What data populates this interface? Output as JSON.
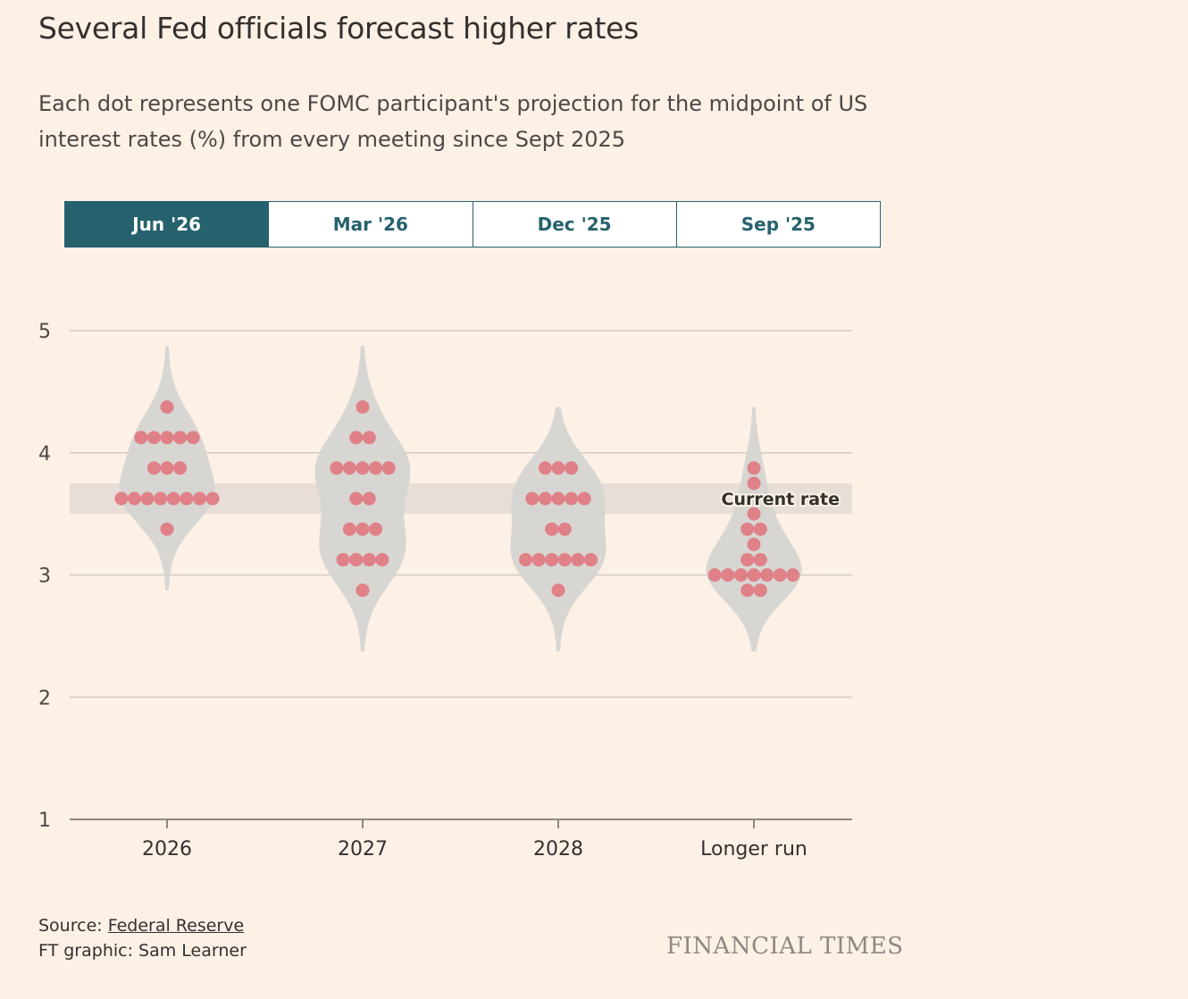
{
  "title": "Several Fed officials forecast higher rates",
  "subtitle": "Each dot represents one FOMC participant's projection for the midpoint of US interest rates (%) from every meeting since Sept 2025",
  "tabs": [
    {
      "label": "Jun '26",
      "active": true
    },
    {
      "label": "Mar '26",
      "active": false
    },
    {
      "label": "Dec '25",
      "active": false
    },
    {
      "label": "Sep '25",
      "active": false
    }
  ],
  "footer": {
    "source_prefix": "Source: ",
    "source_link": "Federal Reserve",
    "credit": "FT graphic: Sam Learner"
  },
  "brand": "FINANCIAL TIMES",
  "colors": {
    "background": "#fdf1e6",
    "dot": "#e07a80",
    "violin": "#d6d4d2",
    "band": "#e3dbd4",
    "grid": "#d2cbc4",
    "tab_active": "#26626e"
  },
  "chart_data": {
    "type": "scatter",
    "categories": [
      "2026",
      "2027",
      "2028",
      "Longer run"
    ],
    "ylim": [
      1,
      5
    ],
    "yticks": [
      "1",
      "2",
      "3",
      "4",
      "5"
    ],
    "current_rate": {
      "label": "Current rate",
      "range": [
        3.5,
        3.75
      ]
    },
    "series": [
      {
        "values": [
          4.375,
          4.125,
          4.125,
          4.125,
          4.125,
          4.125,
          3.875,
          3.875,
          3.875,
          3.625,
          3.625,
          3.625,
          3.625,
          3.625,
          3.625,
          3.625,
          3.625,
          3.375
        ]
      },
      {
        "values": [
          4.375,
          4.125,
          4.125,
          3.875,
          3.875,
          3.875,
          3.875,
          3.875,
          3.625,
          3.625,
          3.375,
          3.375,
          3.375,
          3.125,
          3.125,
          3.125,
          3.125,
          2.875
        ]
      },
      {
        "values": [
          3.875,
          3.875,
          3.875,
          3.625,
          3.625,
          3.625,
          3.625,
          3.625,
          3.375,
          3.375,
          3.125,
          3.125,
          3.125,
          3.125,
          3.125,
          3.125,
          2.875
        ]
      },
      {
        "values": [
          3.875,
          3.75,
          3.5,
          3.375,
          3.375,
          3.25,
          3.125,
          3.125,
          3.0,
          3.0,
          3.0,
          3.0,
          3.0,
          3.0,
          3.0,
          2.875,
          2.875
        ]
      }
    ]
  }
}
